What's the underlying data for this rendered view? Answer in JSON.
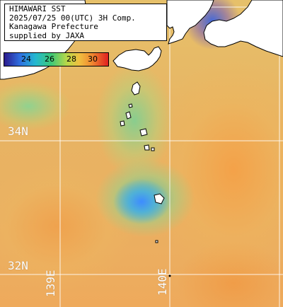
{
  "info": {
    "line1": "HIMAWARI SST",
    "line2": "2025/07/25 00(UTC) 3H Comp.",
    "line3": "Kanagawa Prefecture",
    "line4": "supplied by JAXA"
  },
  "colorbar": {
    "ticks": [
      "24",
      "26",
      "28",
      "30"
    ],
    "gradient_colors": [
      "#2b1a8c",
      "#2f6fe0",
      "#24b8d0",
      "#3cc878",
      "#b8d848",
      "#f0c040",
      "#f08a30",
      "#e02020"
    ]
  },
  "grid": {
    "lat_labels": [
      "34N",
      "32N"
    ],
    "lon_labels": [
      "139E",
      "140E"
    ]
  },
  "colors": {
    "grid": "#ffffff",
    "land": "#ffffff",
    "coastline": "#000000"
  }
}
